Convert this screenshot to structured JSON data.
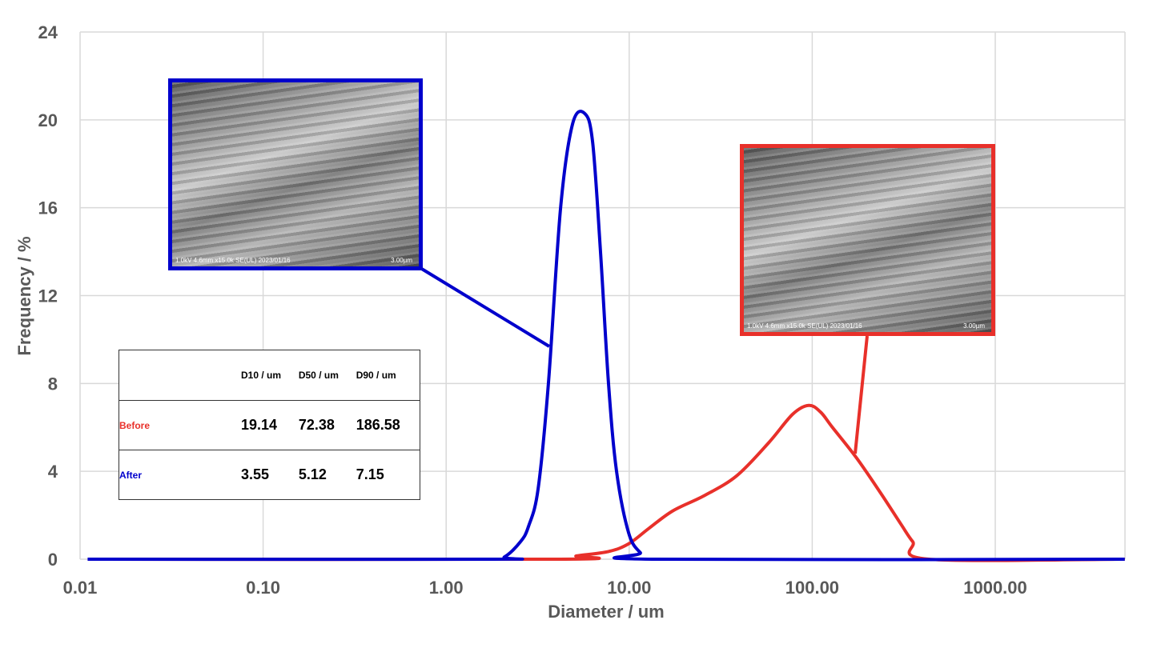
{
  "chart_data": {
    "type": "line",
    "xlabel": "Diameter / um",
    "ylabel": "Frequency / %",
    "xscale": "log",
    "xlim": [
      0.01,
      5100
    ],
    "ylim": [
      0,
      24
    ],
    "xticks": [
      "0.01",
      "0.10",
      "1.00",
      "10.00",
      "100.00",
      "1000.00"
    ],
    "yticks": [
      "0",
      "4",
      "8",
      "12",
      "16",
      "20",
      "24"
    ],
    "grid": true,
    "series": [
      {
        "name": "After",
        "color": "#0000CC",
        "x": [
          0.011,
          1.7,
          2.08,
          2.55,
          2.82,
          3.18,
          3.62,
          4.22,
          4.9,
          5.7,
          6.31,
          6.97,
          7.71,
          8.53,
          9.93,
          11.5,
          13.4,
          5100
        ],
        "y": [
          0,
          0,
          0.1,
          0.8,
          1.5,
          3.2,
          8.0,
          16.0,
          19.8,
          20.3,
          19.0,
          14.0,
          8.0,
          4.0,
          1.2,
          0.3,
          0,
          0
        ]
      },
      {
        "name": "Before",
        "color": "#E8302A",
        "x": [
          0.011,
          4.22,
          5.15,
          7.71,
          9.93,
          12.8,
          17.3,
          25.8,
          38.7,
          57.8,
          78.2,
          95.7,
          111,
          129,
          175,
          237,
          305,
          354,
          434,
          5100
        ],
        "y": [
          0,
          0,
          0.15,
          0.35,
          0.7,
          1.4,
          2.2,
          2.9,
          3.8,
          5.3,
          6.6,
          7.0,
          6.7,
          6.0,
          4.6,
          3.0,
          1.6,
          0.8,
          0,
          0
        ]
      }
    ]
  },
  "table": {
    "headers": [
      "D10 / um",
      "D50 / um",
      "D90 / um"
    ],
    "rows": [
      {
        "label": "Before",
        "color": "#E8302A",
        "values": [
          "19.14",
          "72.38",
          "186.58"
        ]
      },
      {
        "label": "After",
        "color": "#0000CC",
        "values": [
          "3.55",
          "5.12",
          "7.15"
        ]
      }
    ]
  },
  "insets": {
    "after": {
      "caption": "1.0kV 4.6mm x15.0k SE(UL) 2023/01/16",
      "scale": "3.00µm",
      "border": "#0000CC"
    },
    "before": {
      "caption": "1.0kV 4.6mm x15.0k SE(UL) 2023/01/16",
      "scale": "3.00µm",
      "border": "#E8302A"
    }
  }
}
